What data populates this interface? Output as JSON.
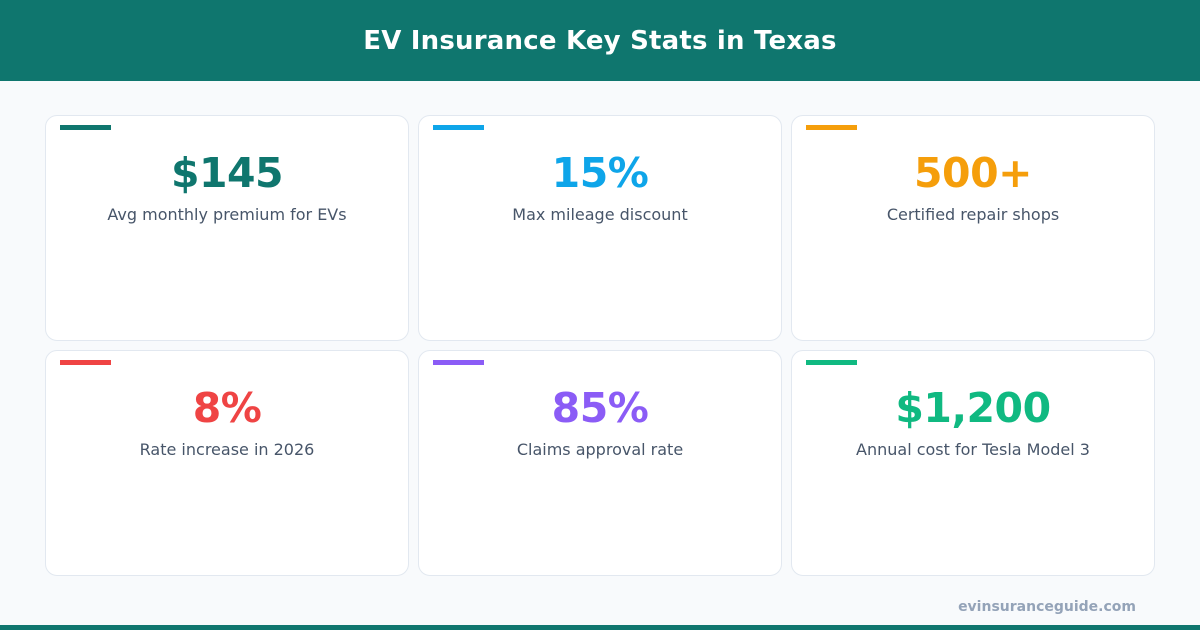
{
  "header": {
    "title": "EV Insurance Key Stats in Texas",
    "background_color": "#0f766e"
  },
  "stats": [
    {
      "value": "$145",
      "label": "Avg monthly premium for EVs",
      "color": "#0f766e"
    },
    {
      "value": "15%",
      "label": "Max mileage discount",
      "color": "#0ea5e9"
    },
    {
      "value": "500+",
      "label": "Certified repair shops",
      "color": "#f59e0b"
    },
    {
      "value": "8%",
      "label": "Rate increase in 2026",
      "color": "#ef4444"
    },
    {
      "value": "85%",
      "label": "Claims approval rate",
      "color": "#8b5cf6"
    },
    {
      "value": "$1,200",
      "label": "Annual cost for Tesla Model 3",
      "color": "#10b981"
    }
  ],
  "footer": {
    "url": "evinsuranceguide.com"
  }
}
